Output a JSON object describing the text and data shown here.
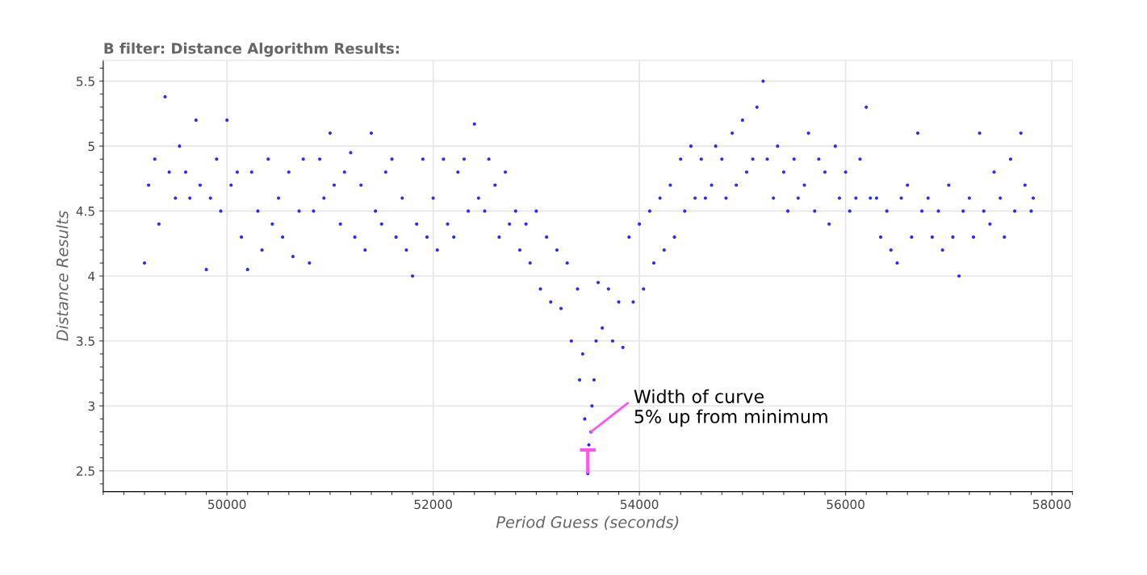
{
  "chart_data": {
    "type": "scatter",
    "title": "B filter: Distance Algorithm Results:",
    "xlabel": "Period Guess (seconds)",
    "ylabel": "Distance Results",
    "x": [
      49200,
      49240,
      49300,
      49340,
      49400,
      49440,
      49500,
      49540,
      49600,
      49640,
      49700,
      49740,
      49800,
      49840,
      49900,
      49940,
      50000,
      50040,
      50100,
      50140,
      50200,
      50240,
      50300,
      50340,
      50400,
      50440,
      50500,
      50540,
      50600,
      50640,
      50700,
      50740,
      50800,
      50840,
      50900,
      50940,
      51000,
      51040,
      51100,
      51140,
      51200,
      51240,
      51300,
      51340,
      51400,
      51440,
      51500,
      51540,
      51600,
      51640,
      51700,
      51740,
      51800,
      51840,
      51900,
      51940,
      52000,
      52040,
      52100,
      52140,
      52200,
      52240,
      52300,
      52340,
      52400,
      52440,
      52500,
      52540,
      52600,
      52640,
      52700,
      52740,
      52800,
      52840,
      52900,
      52940,
      53000,
      53040,
      53100,
      53140,
      53200,
      53240,
      53300,
      53340,
      53400,
      53420,
      53450,
      53470,
      53500,
      53510,
      53530,
      53540,
      53560,
      53580,
      53600,
      53640,
      53700,
      53740,
      53800,
      53840,
      53900,
      53940,
      54000,
      54040,
      54100,
      54140,
      54200,
      54240,
      54300,
      54340,
      54400,
      54440,
      54500,
      54540,
      54600,
      54640,
      54700,
      54740,
      54800,
      54840,
      54900,
      54940,
      55000,
      55040,
      55100,
      55140,
      55200,
      55240,
      55300,
      55340,
      55400,
      55440,
      55500,
      55540,
      55600,
      55640,
      55700,
      55740,
      55800,
      55840,
      55900,
      55940,
      56000,
      56040,
      56100,
      56140,
      56200,
      56240,
      56300,
      56340,
      56400,
      56440,
      56500,
      56540,
      56600,
      56640,
      56700,
      56740,
      56800,
      56840,
      56900,
      56940,
      57000,
      57040,
      57100,
      57140,
      57200,
      57240,
      57300,
      57340,
      57400,
      57440,
      57500,
      57540,
      57600,
      57640,
      57700,
      57740,
      57800,
      57820
    ],
    "values": [
      4.1,
      4.7,
      4.9,
      4.4,
      5.38,
      4.8,
      4.6,
      5.0,
      4.8,
      4.6,
      5.2,
      4.7,
      4.05,
      4.6,
      4.9,
      4.5,
      5.2,
      4.7,
      4.8,
      4.3,
      4.05,
      4.8,
      4.5,
      4.2,
      4.9,
      4.4,
      4.6,
      4.3,
      4.8,
      4.15,
      4.5,
      4.9,
      4.1,
      4.5,
      4.9,
      4.6,
      5.1,
      4.7,
      4.4,
      4.8,
      4.95,
      4.3,
      4.7,
      4.2,
      5.1,
      4.5,
      4.4,
      4.8,
      4.9,
      4.3,
      4.6,
      4.2,
      4.0,
      4.4,
      4.9,
      4.3,
      4.6,
      4.2,
      4.9,
      4.4,
      4.3,
      4.8,
      4.9,
      4.5,
      5.17,
      4.6,
      4.5,
      4.9,
      4.7,
      4.3,
      4.8,
      4.4,
      4.5,
      4.2,
      4.4,
      4.1,
      4.5,
      3.9,
      4.3,
      3.8,
      4.2,
      3.75,
      4.1,
      3.5,
      3.9,
      3.2,
      3.4,
      2.9,
      2.48,
      2.7,
      2.8,
      3.0,
      3.2,
      3.5,
      3.95,
      3.6,
      3.9,
      3.5,
      3.8,
      3.45,
      4.3,
      3.8,
      4.4,
      3.9,
      4.5,
      4.1,
      4.6,
      4.2,
      4.7,
      4.3,
      4.9,
      4.5,
      5.0,
      4.6,
      4.9,
      4.6,
      4.7,
      5.0,
      4.9,
      4.6,
      5.1,
      4.7,
      5.2,
      4.8,
      4.9,
      5.3,
      5.5,
      4.9,
      4.6,
      5.0,
      4.8,
      4.5,
      4.9,
      4.6,
      4.7,
      5.1,
      4.5,
      4.9,
      4.8,
      4.4,
      5.0,
      4.6,
      4.8,
      4.5,
      4.6,
      4.9,
      5.3,
      4.6,
      4.6,
      4.3,
      4.5,
      4.2,
      4.1,
      4.6,
      4.7,
      4.3,
      5.1,
      4.5,
      4.6,
      4.3,
      4.5,
      4.2,
      4.7,
      4.3,
      4.0,
      4.5,
      4.6,
      4.3,
      5.1,
      4.5,
      4.4,
      4.8,
      4.6,
      4.3,
      4.9,
      4.5,
      5.1,
      4.7,
      4.5,
      4.6
    ],
    "color": "#2b2bff",
    "marker": "circle",
    "grid": true,
    "xlim": [
      48800,
      58200
    ],
    "xticks": [
      50000,
      52000,
      54000,
      56000,
      58000
    ],
    "ylim": [
      2.34,
      5.66
    ],
    "yticks": [
      2.5,
      3,
      3.5,
      4,
      4.5,
      5,
      5.5
    ],
    "annotations": [
      {
        "text": "Width of curve\n5% up from minimum",
        "x": 53530,
        "y": 2.8
      }
    ]
  }
}
